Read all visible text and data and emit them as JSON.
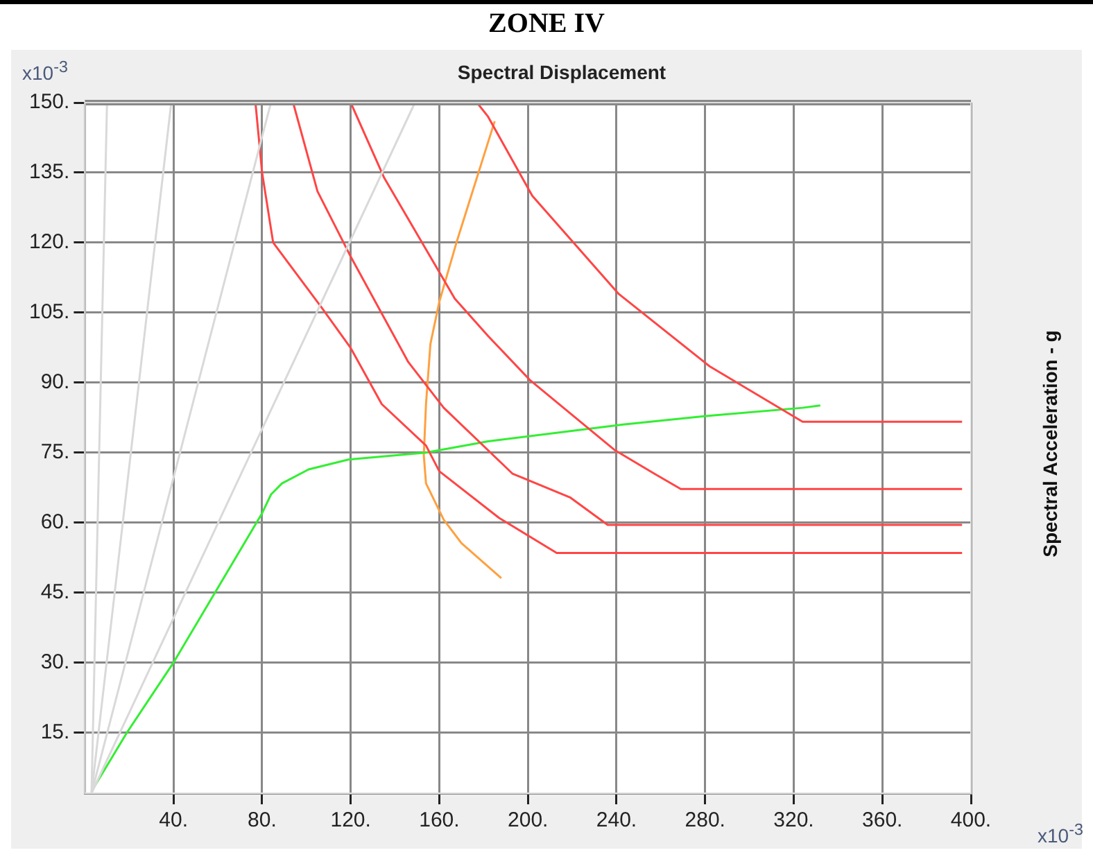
{
  "chart_data": {
    "type": "line",
    "title": "ZONE IV",
    "xlabel": "Spectral Displacement",
    "ylabel": "Spectral Acceleration - g",
    "annotations": [
      "x10$^{-3}$",
      "x10$^{-3}$"
    ],
    "xlim": [
      0,
      400
    ],
    "ylim": [
      2,
      150
    ],
    "xticks": [
      {
        "value": 40,
        "label": "40."
      },
      {
        "value": 80,
        "label": "80."
      },
      {
        "value": 120,
        "label": "120."
      },
      {
        "value": 160,
        "label": "160."
      },
      {
        "value": 200,
        "label": "200."
      },
      {
        "value": 240,
        "label": "240."
      },
      {
        "value": 280,
        "label": "280."
      },
      {
        "value": 320,
        "label": "320."
      },
      {
        "value": 360,
        "label": "360."
      },
      {
        "value": 400,
        "label": "400."
      }
    ],
    "yticks": [
      {
        "value": 15,
        "label": "15."
      },
      {
        "value": 30,
        "label": "30."
      },
      {
        "value": 45,
        "label": "45."
      },
      {
        "value": 60,
        "label": "60."
      },
      {
        "value": 75,
        "label": "75."
      },
      {
        "value": 90,
        "label": "90."
      },
      {
        "value": 105,
        "label": "105."
      },
      {
        "value": 120,
        "label": "120."
      },
      {
        "value": 135,
        "label": "135."
      },
      {
        "value": 150,
        "label": "150."
      }
    ],
    "grid": true,
    "legend": false,
    "marker": "none",
    "line_style": "solid",
    "series": [
      {
        "color": "#d9d9d9",
        "x": [
          3,
          10
        ],
        "values": [
          2,
          150
        ]
      },
      {
        "color": "#d9d9d9",
        "x": [
          3,
          39
        ],
        "values": [
          2,
          150
        ]
      },
      {
        "color": "#d9d9d9",
        "x": [
          3,
          84
        ],
        "values": [
          2,
          150
        ]
      },
      {
        "color": "#d9d9d9",
        "x": [
          3,
          149
        ],
        "values": [
          2,
          150
        ]
      },
      {
        "color": "#ff4545",
        "x": [
          77,
          80,
          85,
          107,
          120,
          134,
          154,
          160,
          187,
          213,
          396
        ],
        "values": [
          150,
          135,
          120,
          106,
          97.4,
          85.4,
          76.5,
          71,
          61,
          53.5,
          53.5
        ]
      },
      {
        "color": "#ff4545",
        "x": [
          94,
          105,
          120,
          146,
          162,
          193,
          219,
          236,
          396
        ],
        "values": [
          150,
          131,
          117,
          94.4,
          84.6,
          70.5,
          65.4,
          59.5,
          59.5
        ]
      },
      {
        "color": "#ff4545",
        "x": [
          120,
          135,
          167,
          182,
          201,
          239,
          257,
          269,
          396
        ],
        "values": [
          150,
          134,
          108,
          100,
          90.5,
          75.6,
          70.5,
          67.2,
          67.2
        ]
      },
      {
        "color": "#ff4545",
        "x": [
          177,
          182,
          202,
          241,
          282,
          324,
          396
        ],
        "values": [
          150,
          147,
          130,
          109,
          93.5,
          81.6,
          81.6
        ]
      },
      {
        "color": "#33ee33",
        "x": [
          3,
          19,
          40,
          80,
          84,
          89,
          101,
          119,
          154,
          182,
          243,
          284,
          324,
          332
        ],
        "values": [
          2.4,
          15,
          30,
          62,
          66,
          68.4,
          71.4,
          73.5,
          75,
          77.4,
          81,
          83,
          84.6,
          85.1
        ]
      },
      {
        "color": "#ffa040",
        "x": [
          185,
          168,
          160,
          156,
          154,
          153,
          154,
          162,
          170,
          188
        ],
        "values": [
          146,
          120.4,
          107.3,
          98.3,
          85.4,
          74.4,
          68.4,
          60.6,
          55.6,
          48.1
        ]
      }
    ]
  }
}
